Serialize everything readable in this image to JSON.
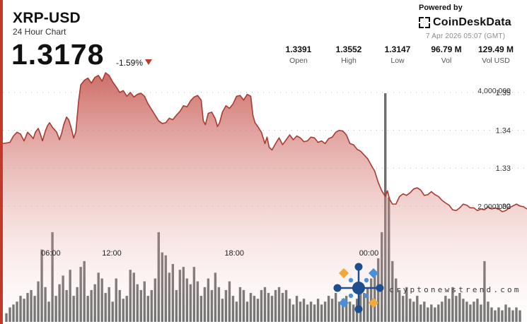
{
  "header": {
    "symbol": "XRP-USD",
    "subtitle": "24 Hour Chart",
    "price": "1.3178",
    "change": "-1.59%",
    "powered_by": "Powered by",
    "brand": "CoinDeskData",
    "timestamp": "7 Apr 2026 05:07 (GMT)"
  },
  "stats": [
    {
      "value": "1.3391",
      "label": "Open"
    },
    {
      "value": "1.3552",
      "label": "High"
    },
    {
      "value": "1.3147",
      "label": "Low"
    },
    {
      "value": "96.79 M",
      "label": "Vol"
    },
    {
      "value": "129.49 M",
      "label": "Vol USD"
    }
  ],
  "watermark": "cryptonewstrend.com",
  "colors": {
    "accent": "#c0392b",
    "down": "#c0392b",
    "volume": "#6b6b6b"
  },
  "chart_data": {
    "type": "area",
    "x_ticks": [
      "06:00",
      "12:00",
      "18:00",
      "00:00"
    ],
    "y_ticks": [
      "1.35",
      "1.34",
      "1.33",
      "1.32"
    ],
    "volume_ticks": [
      "4,000,000",
      "2,000,000"
    ],
    "ylim": [
      1.3105,
      1.3565
    ],
    "volume_lim": [
      0,
      5200000
    ],
    "grid": true,
    "price_series": [
      [
        0,
        1.3365
      ],
      [
        1,
        1.3368
      ],
      [
        1.5,
        1.3385
      ],
      [
        2,
        1.3395
      ],
      [
        2.5,
        1.339
      ],
      [
        3,
        1.3372
      ],
      [
        3.5,
        1.3395
      ],
      [
        4,
        1.3385
      ],
      [
        4.3,
        1.3378
      ],
      [
        4.6,
        1.3395
      ],
      [
        5,
        1.3405
      ],
      [
        5.3,
        1.339
      ],
      [
        5.6,
        1.3372
      ],
      [
        6,
        1.3398
      ],
      [
        6.3,
        1.3412
      ],
      [
        6.6,
        1.342
      ],
      [
        7,
        1.3408
      ],
      [
        7.3,
        1.3402
      ],
      [
        7.6,
        1.3395
      ],
      [
        8,
        1.3375
      ],
      [
        8.3,
        1.3392
      ],
      [
        8.6,
        1.3415
      ],
      [
        9,
        1.3435
      ],
      [
        9.3,
        1.3428
      ],
      [
        9.6,
        1.341
      ],
      [
        10,
        1.338
      ],
      [
        10.3,
        1.3395
      ],
      [
        10.7,
        1.3478
      ],
      [
        11,
        1.352
      ],
      [
        11.5,
        1.3532
      ],
      [
        12,
        1.3538
      ],
      [
        12.5,
        1.3525
      ],
      [
        13,
        1.354
      ],
      [
        13.5,
        1.3545
      ],
      [
        14,
        1.353
      ],
      [
        14.5,
        1.3552
      ],
      [
        15,
        1.3545
      ],
      [
        15.5,
        1.3528
      ],
      [
        16,
        1.3515
      ],
      [
        16.5,
        1.35
      ],
      [
        17,
        1.3505
      ],
      [
        17.5,
        1.349
      ],
      [
        18,
        1.35
      ],
      [
        18.5,
        1.3488
      ],
      [
        19,
        1.3495
      ],
      [
        19.5,
        1.3498
      ],
      [
        20,
        1.349
      ],
      [
        20.5,
        1.347
      ],
      [
        21,
        1.3455
      ],
      [
        21.5,
        1.344
      ],
      [
        22,
        1.3425
      ],
      [
        22.5,
        1.3418
      ],
      [
        23,
        1.342
      ],
      [
        23.5,
        1.3432
      ],
      [
        24,
        1.3428
      ],
      [
        24.5,
        1.344
      ],
      [
        25,
        1.345
      ],
      [
        25.5,
        1.3465
      ],
      [
        26,
        1.3462
      ],
      [
        26.5,
        1.3478
      ],
      [
        27,
        1.3488
      ],
      [
        27.5,
        1.3492
      ],
      [
        28,
        1.348
      ],
      [
        28.3,
        1.3425
      ],
      [
        28.6,
        1.3415
      ],
      [
        29,
        1.3445
      ],
      [
        29.5,
        1.3448
      ],
      [
        30,
        1.343
      ],
      [
        30.3,
        1.341
      ],
      [
        30.6,
        1.342
      ],
      [
        31,
        1.3448
      ],
      [
        31.5,
        1.3465
      ],
      [
        32,
        1.3458
      ],
      [
        32.5,
        1.347
      ],
      [
        33,
        1.349
      ],
      [
        33.5,
        1.3492
      ],
      [
        34,
        1.348
      ],
      [
        34.5,
        1.3495
      ],
      [
        35,
        1.349
      ],
      [
        35.3,
        1.344
      ],
      [
        35.6,
        1.342
      ],
      [
        36,
        1.341
      ],
      [
        36.5,
        1.3395
      ],
      [
        37,
        1.3365
      ],
      [
        37.3,
        1.3382
      ],
      [
        37.6,
        1.3355
      ],
      [
        38,
        1.3348
      ],
      [
        38.5,
        1.3365
      ],
      [
        39,
        1.338
      ],
      [
        39.5,
        1.3362
      ],
      [
        40,
        1.3375
      ],
      [
        40.5,
        1.3388
      ],
      [
        41,
        1.3375
      ],
      [
        41.5,
        1.3385
      ],
      [
        42,
        1.338
      ],
      [
        42.5,
        1.337
      ],
      [
        43,
        1.3372
      ],
      [
        43.5,
        1.3382
      ],
      [
        44,
        1.338
      ],
      [
        44.5,
        1.3368
      ],
      [
        45,
        1.3372
      ],
      [
        45.5,
        1.3365
      ],
      [
        46,
        1.3378
      ],
      [
        46.5,
        1.3382
      ],
      [
        47,
        1.3395
      ],
      [
        47.5,
        1.34
      ],
      [
        48,
        1.3398
      ],
      [
        48.5,
        1.3388
      ],
      [
        49,
        1.3365
      ],
      [
        49.5,
        1.3362
      ],
      [
        50,
        1.335
      ],
      [
        50.5,
        1.3345
      ],
      [
        51,
        1.3335
      ],
      [
        51.5,
        1.3325
      ],
      [
        52,
        1.3308
      ],
      [
        52.5,
        1.3292
      ],
      [
        53,
        1.3262
      ],
      [
        53.5,
        1.324
      ],
      [
        54,
        1.3225
      ],
      [
        54.3,
        1.324
      ],
      [
        54.6,
        1.3218
      ],
      [
        55,
        1.3205
      ],
      [
        55.5,
        1.3205
      ],
      [
        56,
        1.3225
      ],
      [
        56.5,
        1.3232
      ],
      [
        57,
        1.3228
      ],
      [
        57.5,
        1.3235
      ],
      [
        58,
        1.3245
      ],
      [
        58.5,
        1.3248
      ],
      [
        59,
        1.3242
      ],
      [
        59.5,
        1.3228
      ],
      [
        60,
        1.323
      ],
      [
        60.5,
        1.3238
      ],
      [
        61,
        1.323
      ],
      [
        61.5,
        1.3225
      ],
      [
        62,
        1.3215
      ],
      [
        62.5,
        1.3208
      ],
      [
        63,
        1.3202
      ],
      [
        63.5,
        1.319
      ],
      [
        64,
        1.3188
      ],
      [
        64.5,
        1.3195
      ],
      [
        65,
        1.3205
      ],
      [
        65.5,
        1.3202
      ],
      [
        66,
        1.3195
      ],
      [
        66.5,
        1.3195
      ],
      [
        67,
        1.3188
      ],
      [
        67.5,
        1.3192
      ],
      [
        68,
        1.319
      ],
      [
        68.5,
        1.3198
      ],
      [
        69,
        1.3192
      ],
      [
        69.5,
        1.3195
      ],
      [
        70,
        1.3192
      ],
      [
        70.5,
        1.3185
      ],
      [
        71,
        1.3188
      ],
      [
        71.5,
        1.3195
      ],
      [
        72,
        1.32
      ],
      [
        72.5,
        1.3205
      ],
      [
        73,
        1.32
      ],
      [
        73.5,
        1.3198
      ],
      [
        74,
        1.3192
      ]
    ],
    "volume_series": [
      [
        0.5,
        0.15
      ],
      [
        1,
        0.25
      ],
      [
        1.5,
        0.3
      ],
      [
        2,
        0.35
      ],
      [
        2.5,
        0.45
      ],
      [
        3,
        0.4
      ],
      [
        3.5,
        0.5
      ],
      [
        4,
        0.55
      ],
      [
        4.5,
        0.45
      ],
      [
        5,
        0.7
      ],
      [
        5.5,
        1.25
      ],
      [
        6,
        0.6
      ],
      [
        6.5,
        0.35
      ],
      [
        7,
        1.55
      ],
      [
        7.5,
        0.45
      ],
      [
        8,
        0.65
      ],
      [
        8.5,
        0.8
      ],
      [
        9,
        0.55
      ],
      [
        9.5,
        0.9
      ],
      [
        10,
        0.45
      ],
      [
        10.5,
        0.6
      ],
      [
        11,
        0.95
      ],
      [
        11.5,
        1.05
      ],
      [
        12,
        0.45
      ],
      [
        12.5,
        0.55
      ],
      [
        13,
        0.65
      ],
      [
        13.5,
        0.85
      ],
      [
        14,
        0.75
      ],
      [
        14.5,
        0.5
      ],
      [
        15,
        0.6
      ],
      [
        15.5,
        0.35
      ],
      [
        16,
        0.75
      ],
      [
        16.5,
        0.55
      ],
      [
        17,
        0.4
      ],
      [
        17.5,
        0.45
      ],
      [
        18,
        0.9
      ],
      [
        18.5,
        0.85
      ],
      [
        19,
        0.65
      ],
      [
        19.5,
        0.55
      ],
      [
        20,
        0.7
      ],
      [
        20.5,
        0.45
      ],
      [
        21,
        0.55
      ],
      [
        21.5,
        0.75
      ],
      [
        22,
        1.55
      ],
      [
        22.5,
        1.2
      ],
      [
        23,
        1.15
      ],
      [
        23.5,
        0.85
      ],
      [
        24,
        1.0
      ],
      [
        24.5,
        0.55
      ],
      [
        25,
        0.9
      ],
      [
        25.5,
        0.95
      ],
      [
        26,
        0.75
      ],
      [
        26.5,
        0.65
      ],
      [
        27,
        0.95
      ],
      [
        27.5,
        0.7
      ],
      [
        28,
        0.45
      ],
      [
        28.5,
        0.6
      ],
      [
        29,
        0.75
      ],
      [
        29.5,
        0.55
      ],
      [
        30,
        0.85
      ],
      [
        30.5,
        0.6
      ],
      [
        31,
        0.4
      ],
      [
        31.5,
        0.55
      ],
      [
        32,
        0.7
      ],
      [
        32.5,
        0.45
      ],
      [
        33,
        0.35
      ],
      [
        33.5,
        0.6
      ],
      [
        34,
        0.55
      ],
      [
        34.5,
        0.35
      ],
      [
        35,
        0.5
      ],
      [
        35.5,
        0.45
      ],
      [
        36,
        0.4
      ],
      [
        36.5,
        0.55
      ],
      [
        37,
        0.6
      ],
      [
        37.5,
        0.5
      ],
      [
        38,
        0.45
      ],
      [
        38.5,
        0.55
      ],
      [
        39,
        0.6
      ],
      [
        39.5,
        0.5
      ],
      [
        40,
        0.55
      ],
      [
        40.5,
        0.4
      ],
      [
        41,
        0.3
      ],
      [
        41.5,
        0.45
      ],
      [
        42,
        0.35
      ],
      [
        42.5,
        0.4
      ],
      [
        43,
        0.3
      ],
      [
        43.5,
        0.35
      ],
      [
        44,
        0.3
      ],
      [
        44.5,
        0.4
      ],
      [
        45,
        0.3
      ],
      [
        45.5,
        0.35
      ],
      [
        46,
        0.45
      ],
      [
        46.5,
        0.4
      ],
      [
        47,
        0.5
      ],
      [
        47.5,
        0.35
      ],
      [
        48,
        0.4
      ],
      [
        48.5,
        0.45
      ],
      [
        49,
        0.35
      ],
      [
        49.5,
        0.3
      ],
      [
        50,
        0.4
      ],
      [
        50.5,
        0.55
      ],
      [
        51,
        0.5
      ],
      [
        51.5,
        0.6
      ],
      [
        52,
        0.75
      ],
      [
        52.5,
        0.85
      ],
      [
        53,
        1.1
      ],
      [
        53.5,
        1.55
      ],
      [
        54,
        3.95
      ],
      [
        54.5,
        2.15
      ],
      [
        55,
        1.05
      ],
      [
        55.5,
        0.75
      ],
      [
        56,
        0.55
      ],
      [
        56.5,
        0.45
      ],
      [
        57,
        0.6
      ],
      [
        57.5,
        0.4
      ],
      [
        58,
        0.35
      ],
      [
        58.5,
        0.45
      ],
      [
        59,
        0.3
      ],
      [
        59.5,
        0.35
      ],
      [
        60,
        0.25
      ],
      [
        60.5,
        0.3
      ],
      [
        61,
        0.25
      ],
      [
        61.5,
        0.3
      ],
      [
        62,
        0.35
      ],
      [
        62.5,
        0.45
      ],
      [
        63,
        0.4
      ],
      [
        63.5,
        0.6
      ],
      [
        64,
        0.45
      ],
      [
        64.5,
        0.5
      ],
      [
        65,
        0.4
      ],
      [
        65.5,
        0.35
      ],
      [
        66,
        0.3
      ],
      [
        66.5,
        0.35
      ],
      [
        67,
        0.4
      ],
      [
        67.5,
        0.3
      ],
      [
        68,
        1.05
      ],
      [
        68.5,
        0.35
      ],
      [
        69,
        0.25
      ],
      [
        69.5,
        0.2
      ],
      [
        70,
        0.25
      ],
      [
        70.5,
        0.2
      ],
      [
        71,
        0.3
      ],
      [
        71.5,
        0.25
      ],
      [
        72,
        0.2
      ],
      [
        72.5,
        0.25
      ],
      [
        73,
        0.2
      ]
    ]
  }
}
